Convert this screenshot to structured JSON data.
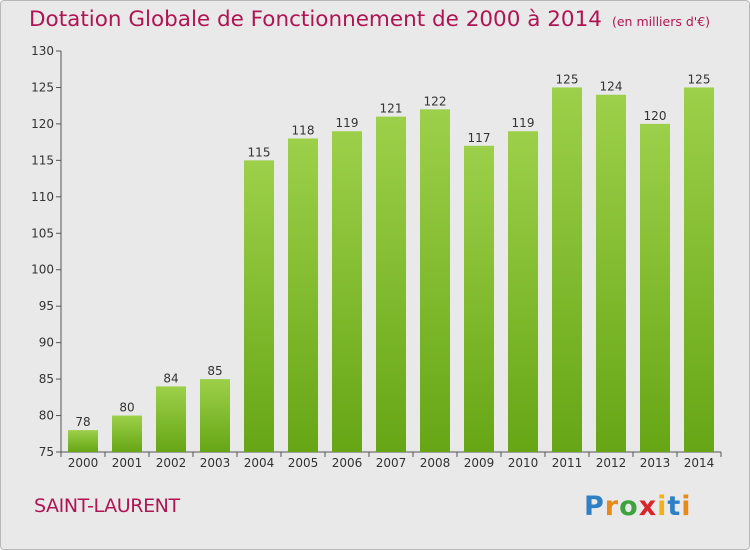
{
  "header": {
    "title": "Dotation Globale de Fonctionnement de 2000 à 2014",
    "unit": "(en milliers d'€)"
  },
  "footer": {
    "commune": "SAINT-LAURENT",
    "logo": "Proxiti"
  },
  "colors": {
    "title": "#b01553",
    "bar_light": "#9dd04a",
    "bar_dark": "#66a615",
    "background": "#e9e9e9"
  },
  "chart_data": {
    "type": "bar",
    "title": "Dotation Globale de Fonctionnement de 2000 à 2014",
    "subtitle": "(en milliers d'€)",
    "xlabel": "",
    "ylabel": "",
    "categories": [
      "2000",
      "2001",
      "2002",
      "2003",
      "2004",
      "2005",
      "2006",
      "2007",
      "2008",
      "2009",
      "2010",
      "2011",
      "2012",
      "2013",
      "2014"
    ],
    "values": [
      78,
      80,
      84,
      85,
      115,
      118,
      119,
      121,
      122,
      117,
      119,
      125,
      124,
      120,
      125
    ],
    "ylim": [
      75,
      130
    ],
    "yticks": [
      75,
      80,
      85,
      90,
      95,
      100,
      105,
      110,
      115,
      120,
      125,
      130
    ],
    "grid": false,
    "data_labels": true
  }
}
